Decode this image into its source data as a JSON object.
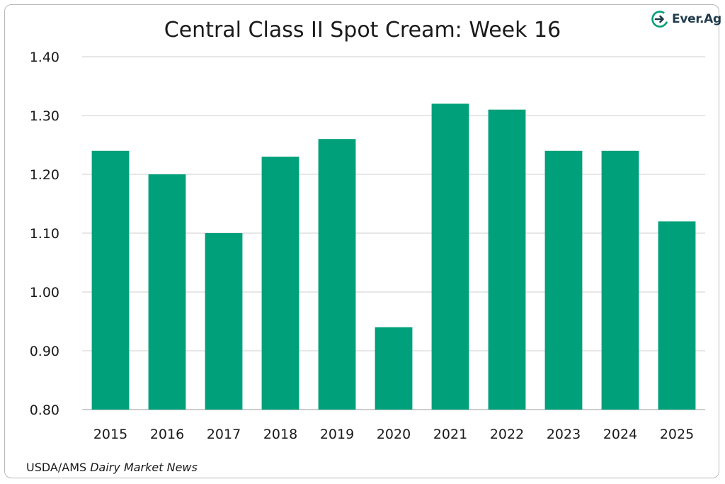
{
  "chart_data": {
    "type": "bar",
    "title": "Central Class II Spot Cream: Week 16",
    "categories": [
      "2015",
      "2016",
      "2017",
      "2018",
      "2019",
      "2020",
      "2021",
      "2022",
      "2023",
      "2024",
      "2025"
    ],
    "values": [
      1.24,
      1.2,
      1.1,
      1.23,
      1.26,
      0.94,
      1.32,
      1.31,
      1.24,
      1.24,
      1.12
    ],
    "xlabel": "",
    "ylabel": "",
    "ylim": [
      0.8,
      1.4
    ],
    "yticks": [
      "0.80",
      "0.90",
      "1.00",
      "1.10",
      "1.20",
      "1.30",
      "1.40"
    ],
    "grid": true,
    "legend": "none",
    "bar_color": "#00a07a"
  },
  "source": {
    "prefix": "USDA/AMS ",
    "italic": "Dairy Market News"
  },
  "logo": {
    "text_main": "Ever.",
    "text_ag": "Ag",
    "icon": "ever-ag-logo-icon"
  },
  "colors": {
    "gridline": "#cfcfcf",
    "axis": "#bdbdbd",
    "logo_green": "#00a07a",
    "logo_navy": "#1f3b4d"
  }
}
